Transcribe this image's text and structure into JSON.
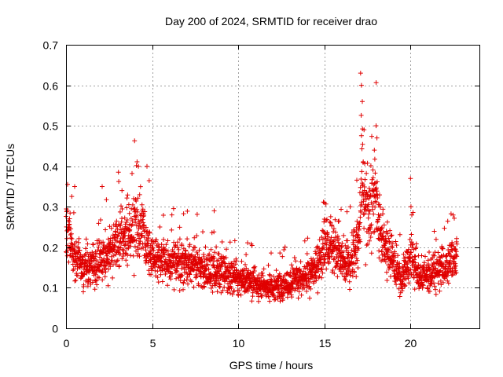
{
  "chart_data": {
    "type": "scatter",
    "title": "Day 200 of 2024, SRMTID for receiver drao",
    "xlabel": "GPS time / hours",
    "ylabel": "SRMTID / TECUs",
    "xlim": [
      0,
      24
    ],
    "ylim": [
      0,
      0.7
    ],
    "xticks": [
      0,
      5,
      10,
      15,
      20
    ],
    "yticks": [
      0,
      0.1,
      0.2,
      0.3,
      0.4,
      0.5,
      0.6,
      0.7
    ],
    "xtick_labels": [
      "0",
      "5",
      "10",
      "15",
      "20"
    ],
    "ytick_labels": [
      "0",
      "0.1",
      "0.2",
      "0.3",
      "0.4",
      "0.5",
      "0.6",
      "0.7"
    ],
    "grid": true,
    "marker": "+",
    "color": "#e00000",
    "series": [
      {
        "name": "SRMTID",
        "envelope": {
          "x": [
            0,
            0.5,
            1,
            2,
            3,
            4,
            4.5,
            5,
            6,
            7,
            8,
            9,
            10,
            11,
            12,
            13,
            14,
            14.5,
            15,
            15.5,
            16,
            16.5,
            17,
            17.2,
            17.5,
            18,
            18.3,
            18.8,
            19.5,
            20,
            20.5,
            21,
            22,
            22.7
          ],
          "y": [
            0.24,
            0.18,
            0.15,
            0.17,
            0.21,
            0.25,
            0.24,
            0.17,
            0.16,
            0.17,
            0.14,
            0.14,
            0.12,
            0.11,
            0.1,
            0.11,
            0.13,
            0.15,
            0.2,
            0.2,
            0.17,
            0.16,
            0.22,
            0.38,
            0.28,
            0.33,
            0.22,
            0.18,
            0.12,
            0.18,
            0.13,
            0.13,
            0.15,
            0.17
          ]
        },
        "highlights": [
          {
            "x": 0.5,
            "y": 0.35
          },
          {
            "x": 2.1,
            "y": 0.35
          },
          {
            "x": 4.2,
            "y": 0.4
          },
          {
            "x": 4.7,
            "y": 0.4
          },
          {
            "x": 8.6,
            "y": 0.29
          },
          {
            "x": 15.0,
            "y": 0.31
          },
          {
            "x": 16.5,
            "y": 0.3
          },
          {
            "x": 17.1,
            "y": 0.63
          },
          {
            "x": 17.15,
            "y": 0.6
          },
          {
            "x": 17.2,
            "y": 0.56
          },
          {
            "x": 17.3,
            "y": 0.49
          },
          {
            "x": 18.0,
            "y": 0.5
          },
          {
            "x": 18.05,
            "y": 0.47
          },
          {
            "x": 17.9,
            "y": 0.44
          },
          {
            "x": 20.0,
            "y": 0.37
          }
        ]
      }
    ]
  }
}
